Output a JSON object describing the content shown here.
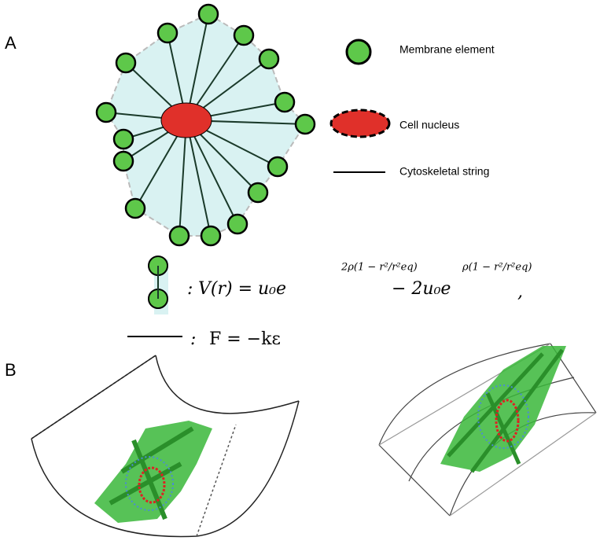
{
  "panel_labels": [
    "A",
    "B"
  ],
  "legend": [
    "Membrane element",
    "Cell nucleus",
    "Cytoskeletal string"
  ],
  "equations": {
    "potential": {
      "prefix": ":",
      "lhs": "V(r) = u₀e",
      "exp1": "2ρ(1 − r²/r²eq)",
      "middle": "− 2u₀e",
      "exp2": "ρ(1 − r²/r²eq)",
      "end": ","
    },
    "spring": {
      "prefix": ":",
      "text": "F = −kε"
    }
  }
}
